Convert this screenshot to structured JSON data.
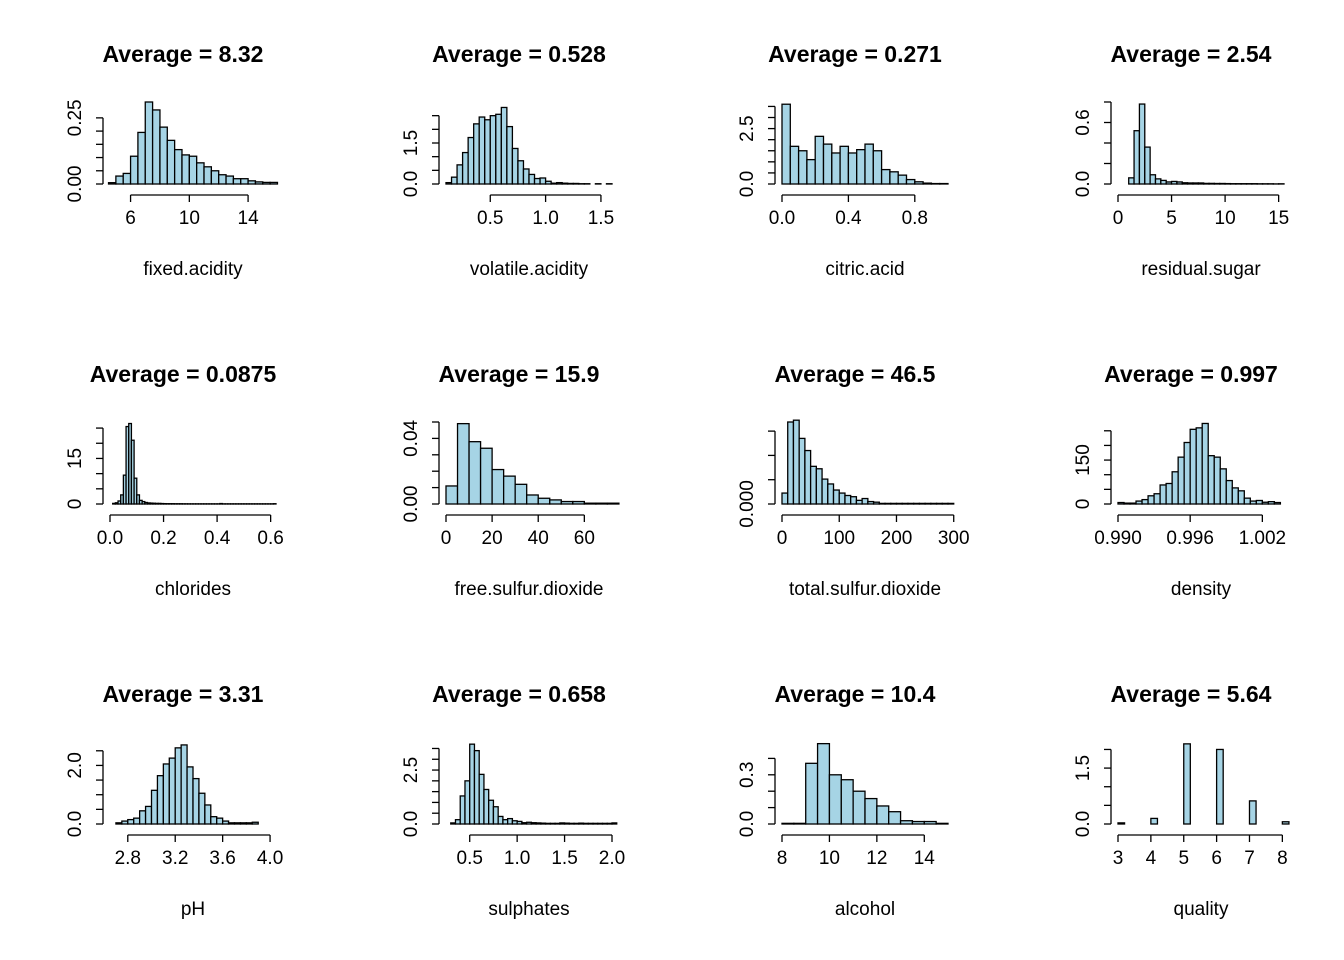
{
  "chart_data": [
    {
      "type": "bar",
      "title": "Average = 8.32",
      "xlabel": "fixed.acidity",
      "xlim": [
        4.6,
        15.9
      ],
      "ylim": [
        0,
        0.31
      ],
      "xticks": [
        6,
        10,
        14
      ],
      "xtick_labels": [
        "6",
        "10",
        "14"
      ],
      "yticks": [
        0.0,
        0.25
      ],
      "ytick_labels": [
        "0.00",
        "0.25"
      ],
      "ytick_marks": [
        0,
        0.05,
        0.1,
        0.15,
        0.2,
        0.25
      ],
      "bin_start": 4.5,
      "bin_width": 0.5,
      "values": [
        0.005,
        0.03,
        0.04,
        0.105,
        0.195,
        0.31,
        0.28,
        0.215,
        0.165,
        0.13,
        0.11,
        0.105,
        0.08,
        0.065,
        0.05,
        0.035,
        0.03,
        0.02,
        0.02,
        0.012,
        0.008,
        0.006,
        0.006
      ]
    },
    {
      "type": "bar",
      "title": "Average = 0.528",
      "xlabel": "volatile.acidity",
      "xlim": [
        0.1,
        1.6
      ],
      "ylim": [
        0,
        3.0
      ],
      "xticks": [
        0.5,
        1.0,
        1.5
      ],
      "xtick_labels": [
        "0.5",
        "1.0",
        "1.5"
      ],
      "yticks": [
        0.0,
        1.5
      ],
      "ytick_labels": [
        "0.0",
        "1.5"
      ],
      "ytick_marks": [
        0,
        0.5,
        1.0,
        1.5,
        2.0,
        2.5
      ],
      "bin_start": 0.1,
      "bin_width": 0.05,
      "values": [
        0.05,
        0.25,
        0.7,
        1.15,
        1.7,
        2.2,
        2.45,
        2.35,
        2.5,
        2.55,
        2.8,
        2.1,
        1.3,
        0.85,
        0.55,
        0.35,
        0.2,
        0.22,
        0.1,
        0.03,
        0.05,
        0.03,
        0.02,
        0.02,
        0.01,
        0.01,
        0.0,
        0.01,
        0.0,
        0.01
      ]
    },
    {
      "type": "bar",
      "title": "Average = 0.271",
      "xlabel": "citric.acid",
      "xlim": [
        0,
        1.0
      ],
      "ylim": [
        0,
        3.7
      ],
      "xticks": [
        0.0,
        0.4,
        0.8
      ],
      "xtick_labels": [
        "0.0",
        "0.4",
        "0.8"
      ],
      "yticks": [
        0.0,
        2.5
      ],
      "ytick_labels": [
        "0.0",
        "2.5"
      ],
      "ytick_marks": [
        0,
        0.5,
        1.0,
        1.5,
        2.0,
        2.5,
        3.0,
        3.5
      ],
      "bin_start": 0,
      "bin_width": 0.05,
      "values": [
        3.6,
        1.7,
        1.5,
        1.1,
        2.15,
        1.8,
        1.4,
        1.7,
        1.4,
        1.55,
        1.8,
        1.5,
        0.65,
        0.55,
        0.4,
        0.2,
        0.1,
        0.04,
        0.02,
        0.02
      ]
    },
    {
      "type": "bar",
      "title": "Average = 2.54",
      "xlabel": "residual.sugar",
      "xlim": [
        0,
        15.5
      ],
      "ylim": [
        0,
        0.8
      ],
      "xticks": [
        0,
        5,
        10,
        15
      ],
      "xtick_labels": [
        "0",
        "5",
        "10",
        "15"
      ],
      "yticks": [
        0.0,
        0.6
      ],
      "ytick_labels": [
        "0.0",
        "0.6"
      ],
      "ytick_marks": [
        0,
        0.2,
        0.4,
        0.6,
        0.8
      ],
      "bin_start": 0.5,
      "bin_width": 0.5,
      "values": [
        0.0,
        0.06,
        0.52,
        0.78,
        0.36,
        0.09,
        0.05,
        0.035,
        0.02,
        0.025,
        0.02,
        0.012,
        0.01,
        0.01,
        0.01,
        0.006,
        0.006,
        0.005,
        0.005,
        0.004,
        0.003,
        0.003,
        0.003,
        0.003,
        0.003,
        0.002,
        0.002,
        0.002,
        0.001,
        0.002
      ]
    },
    {
      "type": "bar",
      "title": "Average = 0.0875",
      "xlabel": "chlorides",
      "xlim": [
        0,
        0.62
      ],
      "ylim": [
        0,
        27
      ],
      "xticks": [
        0.0,
        0.2,
        0.4,
        0.6
      ],
      "xtick_labels": [
        "0.0",
        "0.2",
        "0.4",
        "0.6"
      ],
      "yticks": [
        0,
        15
      ],
      "ytick_labels": [
        "0",
        "15"
      ],
      "ytick_marks": [
        0,
        5,
        10,
        15,
        20,
        25
      ],
      "bin_start": 0.01,
      "bin_width": 0.01,
      "values": [
        0.2,
        0.4,
        1.0,
        3.0,
        9.5,
        25.5,
        26.5,
        21.0,
        8.5,
        3.0,
        1.2,
        0.8,
        0.5,
        0.35,
        0.3,
        0.25,
        0.2,
        0.2,
        0.15,
        0.12,
        0.1,
        0.1,
        0.1,
        0.08,
        0.08,
        0.08,
        0.06,
        0.06,
        0.05,
        0.05,
        0.05,
        0.05,
        0.05,
        0.05,
        0.05,
        0.05,
        0.05,
        0.05,
        0.05,
        0.05,
        0.15,
        0.05,
        0.05,
        0.05,
        0.05,
        0.05,
        0.05,
        0.05,
        0.05,
        0.05,
        0.05,
        0.05,
        0.05,
        0.05,
        0.05,
        0.05,
        0.05,
        0.05,
        0.05,
        0.05,
        0.1
      ]
    },
    {
      "type": "bar",
      "title": "Average = 15.9",
      "xlabel": "free.sulfur.dioxide",
      "xlim": [
        0,
        72
      ],
      "ylim": [
        0,
        0.05
      ],
      "xticks": [
        0,
        20,
        40,
        60
      ],
      "xtick_labels": [
        "0",
        "20",
        "40",
        "60"
      ],
      "yticks": [
        0.0,
        0.04
      ],
      "ytick_labels": [
        "0.00",
        "0.04"
      ],
      "ytick_marks": [
        0,
        0.01,
        0.02,
        0.03,
        0.04,
        0.05
      ],
      "bin_start": 0,
      "bin_width": 5,
      "values": [
        0.011,
        0.049,
        0.038,
        0.034,
        0.021,
        0.017,
        0.012,
        0.0055,
        0.0035,
        0.0025,
        0.0015,
        0.0015,
        0.0005,
        0.0005,
        0.0005
      ]
    },
    {
      "type": "bar",
      "title": "Average = 46.5",
      "xlabel": "total.sulfur.dioxide",
      "xlim": [
        0,
        290
      ],
      "ylim": [
        0,
        0.0135
      ],
      "xticks": [
        0,
        100,
        200,
        300
      ],
      "xtick_labels": [
        "0",
        "100",
        "200",
        "300"
      ],
      "yticks": [
        0.0
      ],
      "ytick_labels": [
        "0.000"
      ],
      "ytick_marks": [
        0,
        0.004,
        0.008,
        0.012
      ],
      "bin_start": 0,
      "bin_width": 10,
      "values": [
        0.0018,
        0.0135,
        0.0138,
        0.0108,
        0.0088,
        0.0062,
        0.0058,
        0.0041,
        0.0033,
        0.0023,
        0.0018,
        0.0014,
        0.0012,
        0.0006,
        0.0009,
        0.0004,
        0.0003,
        0.0001,
        0.0001,
        0.0001,
        0.0001,
        0.0001,
        0.0001,
        0.0001,
        0.0001,
        0.0001,
        0.0001,
        0.0001,
        0.0001,
        0.0001
      ]
    },
    {
      "type": "bar",
      "title": "Average = 0.997",
      "xlabel": "density",
      "xlim": [
        0.99,
        1.0038
      ],
      "ylim": [
        0,
        280
      ],
      "xticks": [
        0.99,
        0.996,
        1.002
      ],
      "xtick_labels": [
        "0.990",
        "0.996",
        "1.002"
      ],
      "yticks": [
        0,
        150
      ],
      "ytick_labels": [
        "0",
        "150"
      ],
      "ytick_marks": [
        0,
        50,
        100,
        150,
        200,
        250
      ],
      "bin_start": 0.99,
      "bin_width": 0.0005,
      "values": [
        5,
        3,
        3,
        10,
        15,
        28,
        35,
        65,
        70,
        110,
        160,
        210,
        255,
        260,
        275,
        165,
        160,
        120,
        80,
        55,
        45,
        20,
        10,
        12,
        6,
        8,
        5
      ]
    },
    {
      "type": "bar",
      "title": "Average = 3.31",
      "xlabel": "pH",
      "xlim": [
        2.65,
        4.05
      ],
      "ylim": [
        0,
        2.8
      ],
      "xticks": [
        2.8,
        3.2,
        3.6,
        4.0
      ],
      "xtick_labels": [
        "2.8",
        "3.2",
        "3.6",
        "4.0"
      ],
      "yticks": [
        0.0,
        2.0
      ],
      "ytick_labels": [
        "0.0",
        "2.0"
      ],
      "ytick_marks": [
        0,
        0.5,
        1.0,
        1.5,
        2.0,
        2.5
      ],
      "bin_start": 2.7,
      "bin_width": 0.05,
      "values": [
        0.04,
        0.1,
        0.15,
        0.2,
        0.45,
        0.6,
        1.15,
        1.65,
        2.05,
        2.25,
        2.6,
        2.7,
        1.95,
        1.55,
        1.05,
        0.65,
        0.25,
        0.2,
        0.1,
        0.04,
        0.04,
        0.04,
        0.04,
        0.06
      ]
    },
    {
      "type": "bar",
      "title": "Average = 0.658",
      "xlabel": "sulphates",
      "xlim": [
        0.25,
        2.0
      ],
      "ylim": [
        0,
        3.8
      ],
      "xticks": [
        0.5,
        1.0,
        1.5,
        2.0
      ],
      "xtick_labels": [
        "0.5",
        "1.0",
        "1.5",
        "2.0"
      ],
      "yticks": [
        0.0,
        2.5
      ],
      "ytick_labels": [
        "0.0",
        "2.5"
      ],
      "ytick_marks": [
        0,
        0.5,
        1.0,
        1.5,
        2.0,
        2.5,
        3.0,
        3.5
      ],
      "bin_start": 0.3,
      "bin_width": 0.05,
      "values": [
        0.05,
        0.2,
        1.3,
        2.0,
        3.7,
        3.4,
        2.3,
        1.6,
        1.1,
        0.8,
        0.35,
        0.2,
        0.25,
        0.15,
        0.12,
        0.06,
        0.08,
        0.06,
        0.05,
        0.04,
        0.03,
        0.03,
        0.03,
        0.05,
        0.04,
        0.03,
        0.03,
        0.04,
        0.03,
        0.03,
        0.03,
        0.03,
        0.03,
        0.03,
        0.05
      ]
    },
    {
      "type": "bar",
      "title": "Average = 10.4",
      "xlabel": "alcohol",
      "xlim": [
        8,
        15
      ],
      "ylim": [
        0,
        0.5
      ],
      "xticks": [
        8,
        10,
        12,
        14
      ],
      "xtick_labels": [
        "8",
        "10",
        "12",
        "14"
      ],
      "yticks": [
        0.0,
        0.3
      ],
      "ytick_labels": [
        "0.0",
        "0.3"
      ],
      "ytick_marks": [
        0,
        0.1,
        0.2,
        0.3,
        0.4
      ],
      "bin_start": 8,
      "bin_width": 0.5,
      "values": [
        0.004,
        0.004,
        0.37,
        0.49,
        0.3,
        0.27,
        0.2,
        0.155,
        0.11,
        0.075,
        0.02,
        0.015,
        0.015,
        0.004
      ]
    },
    {
      "type": "bar",
      "title": "Average = 5.64",
      "xlabel": "quality",
      "xlim": [
        3,
        8.05
      ],
      "ylim": [
        0,
        2.2
      ],
      "xticks": [
        3,
        4,
        5,
        6,
        7,
        8
      ],
      "xtick_labels": [
        "3",
        "4",
        "5",
        "6",
        "7",
        "8"
      ],
      "yticks": [
        0.0,
        1.5
      ],
      "ytick_labels": [
        "0.0",
        "1.5"
      ],
      "ytick_marks": [
        0,
        0.5,
        1.0,
        1.5,
        2.0
      ],
      "bin_start": 3,
      "bin_width": 0.2,
      "values": [
        0.03,
        0.0,
        0.0,
        0.0,
        0.0,
        0.15,
        0.0,
        0.0,
        0.0,
        0.0,
        2.15,
        0.0,
        0.0,
        0.0,
        0.0,
        2.0,
        0.0,
        0.0,
        0.0,
        0.0,
        0.62,
        0.0,
        0.0,
        0.0,
        0.0,
        0.06
      ]
    }
  ]
}
